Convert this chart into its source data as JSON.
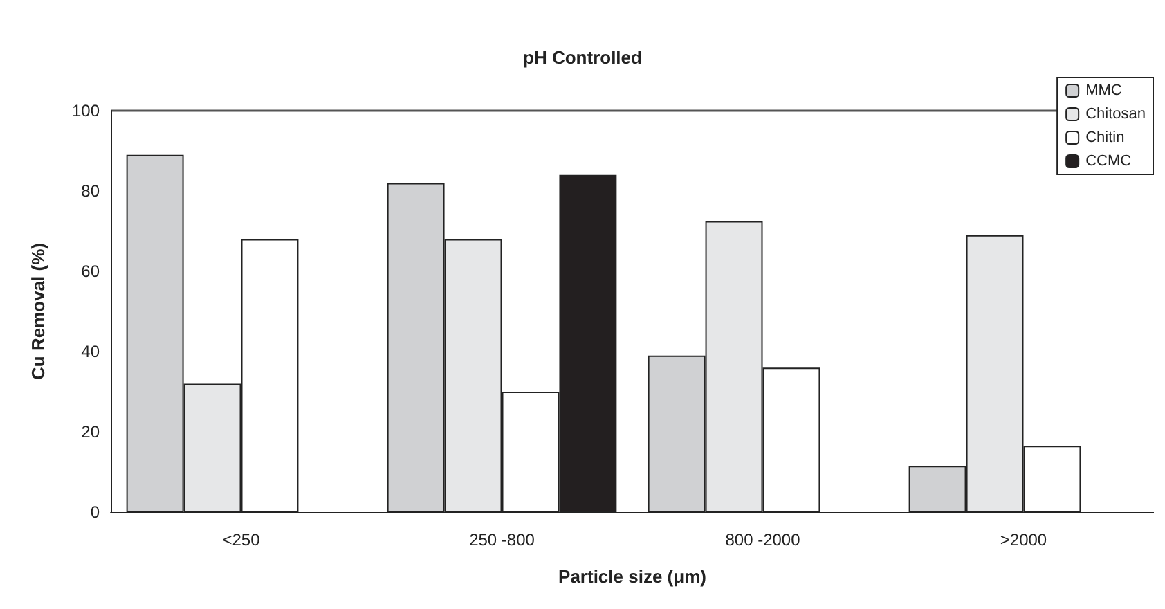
{
  "chart_data": {
    "type": "bar",
    "title": "pH Controlled",
    "xlabel": "Particle size (μm)",
    "ylabel": "Cu Removal (%)",
    "categories": [
      "<250",
      "250 -800",
      "800 -2000",
      ">2000"
    ],
    "series": [
      {
        "name": "MMC",
        "color": "#d0d1d3",
        "values": [
          89,
          82,
          39,
          11.5
        ]
      },
      {
        "name": "Chitosan",
        "color": "#e6e7e8",
        "values": [
          32,
          68,
          72.5,
          69
        ]
      },
      {
        "name": "Chitin",
        "color": "#ffffff",
        "values": [
          68,
          30,
          36,
          16.5
        ]
      },
      {
        "name": "CCMC",
        "color": "#231f20",
        "values": [
          null,
          84,
          null,
          null
        ]
      }
    ],
    "ylim": [
      0,
      100
    ],
    "yticks": [
      0,
      20,
      40,
      60,
      80,
      100
    ],
    "grid": false,
    "legend": "top right"
  }
}
